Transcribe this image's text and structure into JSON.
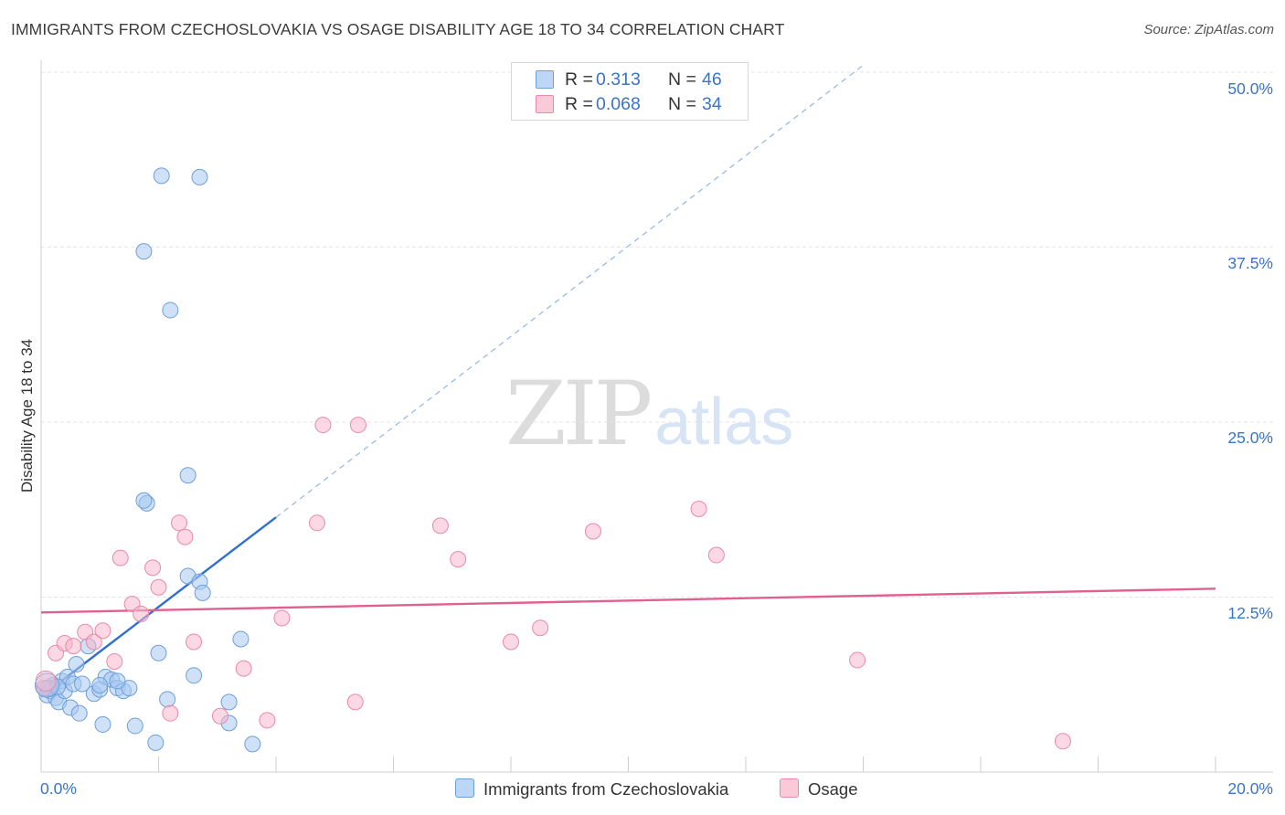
{
  "header": {
    "title": "IMMIGRANTS FROM CZECHOSLOVAKIA VS OSAGE DISABILITY AGE 18 TO 34 CORRELATION CHART",
    "source": "Source: ZipAtlas.com"
  },
  "watermark": {
    "zip": "ZIP",
    "atlas": "atlas"
  },
  "legend_top": {
    "rows": [
      {
        "r_label": "R =",
        "r_value": "0.313",
        "n_label": "N =",
        "n_value": "46",
        "color": "#a8c8f0"
      },
      {
        "r_label": "R =",
        "r_value": "0.068",
        "n_label": "N =",
        "n_value": "34",
        "color": "#f8b8cc"
      }
    ]
  },
  "chart_data": {
    "type": "scatter",
    "title": "IMMIGRANTS FROM CZECHOSLOVAKIA VS OSAGE DISABILITY AGE 18 TO 34 CORRELATION CHART",
    "xlabel": "",
    "ylabel": "Disability Age 18 to 34",
    "xlim": [
      0,
      20
    ],
    "ylim": [
      0,
      50
    ],
    "x_tick_labels": [
      "0.0%",
      "20.0%"
    ],
    "y_tick_labels": [
      "12.5%",
      "25.0%",
      "37.5%",
      "50.0%"
    ],
    "y_ticks": [
      12.5,
      25.0,
      37.5,
      50.0
    ],
    "grid": true,
    "legend_position": "bottom",
    "series": [
      {
        "name": "Immigrants from Czechoslovakia",
        "color": "#a8c8f0",
        "stroke": "#6f9fd8",
        "trend": {
          "x0": 0.0,
          "y0": 5.4,
          "x1": 4.0,
          "y1": 18.2,
          "dash_to_x": 14.0,
          "dash_to_y": 50.5,
          "color": "#2f6fd0"
        },
        "points": [
          [
            0.05,
            6.0
          ],
          [
            0.1,
            5.5
          ],
          [
            0.15,
            5.8
          ],
          [
            0.2,
            6.2
          ],
          [
            0.25,
            5.3
          ],
          [
            0.3,
            5.0
          ],
          [
            0.35,
            6.5
          ],
          [
            0.4,
            5.8
          ],
          [
            0.45,
            6.8
          ],
          [
            0.5,
            4.6
          ],
          [
            0.55,
            6.3
          ],
          [
            0.6,
            7.7
          ],
          [
            0.65,
            4.2
          ],
          [
            0.7,
            6.3
          ],
          [
            0.8,
            9.0
          ],
          [
            0.9,
            5.6
          ],
          [
            1.0,
            5.9
          ],
          [
            1.05,
            3.4
          ],
          [
            1.1,
            6.8
          ],
          [
            1.2,
            6.6
          ],
          [
            1.3,
            6.0
          ],
          [
            1.4,
            5.8
          ],
          [
            1.5,
            6.0
          ],
          [
            1.6,
            3.3
          ],
          [
            1.8,
            19.2
          ],
          [
            1.95,
            2.1
          ],
          [
            2.0,
            8.5
          ],
          [
            2.05,
            42.6
          ],
          [
            2.15,
            5.2
          ],
          [
            1.75,
            19.4
          ],
          [
            1.75,
            37.2
          ],
          [
            2.2,
            33.0
          ],
          [
            2.5,
            21.2
          ],
          [
            2.5,
            14.0
          ],
          [
            2.6,
            6.9
          ],
          [
            2.7,
            13.6
          ],
          [
            2.75,
            12.8
          ],
          [
            2.7,
            42.5
          ],
          [
            3.2,
            3.5
          ],
          [
            3.2,
            5.0
          ],
          [
            3.4,
            9.5
          ],
          [
            3.6,
            2.0
          ],
          [
            0.12,
            6.0
          ],
          [
            0.28,
            6.1
          ],
          [
            1.0,
            6.2
          ],
          [
            1.3,
            6.5
          ]
        ]
      },
      {
        "name": "Osage",
        "color": "#f8b8cc",
        "stroke": "#e88aa8",
        "trend": {
          "x0": 0.0,
          "y0": 11.4,
          "x1": 20.0,
          "y1": 13.1,
          "color": "#e06090"
        },
        "points": [
          [
            0.05,
            6.0
          ],
          [
            0.25,
            8.5
          ],
          [
            0.4,
            9.2
          ],
          [
            0.55,
            9.0
          ],
          [
            0.75,
            10.0
          ],
          [
            0.9,
            9.3
          ],
          [
            1.05,
            10.1
          ],
          [
            1.25,
            7.9
          ],
          [
            1.35,
            15.3
          ],
          [
            1.55,
            12.0
          ],
          [
            1.7,
            11.3
          ],
          [
            1.9,
            14.6
          ],
          [
            2.0,
            13.2
          ],
          [
            2.2,
            4.2
          ],
          [
            2.35,
            17.8
          ],
          [
            2.45,
            16.8
          ],
          [
            2.6,
            9.3
          ],
          [
            3.05,
            4.0
          ],
          [
            3.45,
            7.4
          ],
          [
            3.85,
            3.7
          ],
          [
            4.1,
            11.0
          ],
          [
            4.7,
            17.8
          ],
          [
            4.8,
            24.8
          ],
          [
            5.4,
            24.8
          ],
          [
            5.35,
            5.0
          ],
          [
            6.8,
            17.6
          ],
          [
            7.1,
            15.2
          ],
          [
            8.0,
            9.3
          ],
          [
            8.5,
            10.3
          ],
          [
            9.4,
            17.2
          ],
          [
            11.2,
            18.8
          ],
          [
            11.5,
            15.5
          ],
          [
            13.9,
            8.0
          ],
          [
            17.4,
            2.2
          ]
        ]
      }
    ]
  },
  "axis_labels": {
    "x_left": "0.0%",
    "x_right": "20.0%",
    "y_ticks": [
      "50.0%",
      "37.5%",
      "25.0%",
      "12.5%"
    ],
    "ylabel": "Disability Age 18 to 34"
  },
  "legend_bottom": {
    "items": [
      {
        "label": "Immigrants from Czechoslovakia",
        "color": "#a8c8f0"
      },
      {
        "label": "Osage",
        "color": "#f8b8cc"
      }
    ]
  }
}
